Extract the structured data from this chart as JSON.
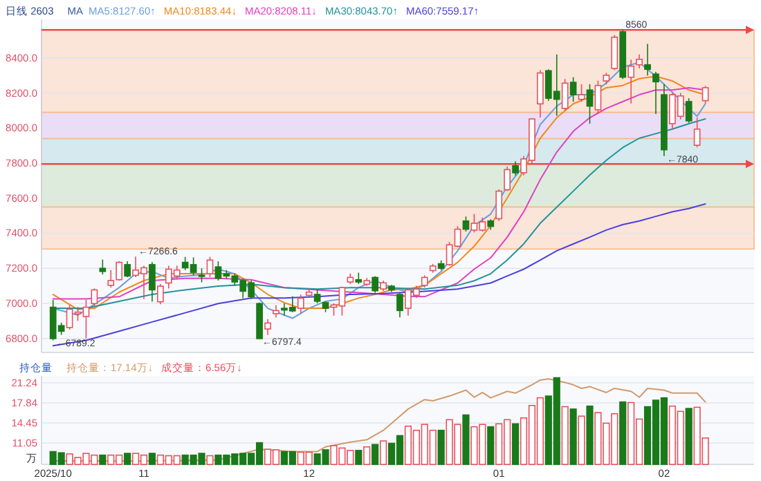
{
  "chart_data": [
    {
      "type": "candlestick",
      "title": "日线 2603",
      "legend_title": "MA",
      "legend": "top",
      "grid": "y",
      "tick_labels": "y",
      "categories": [
        null,
        null,
        null,
        null,
        null,
        null,
        null,
        null,
        null,
        null,
        null,
        null,
        null,
        null,
        null,
        null,
        null,
        null,
        null,
        null,
        null,
        null,
        null,
        null,
        null,
        null,
        null,
        null,
        null,
        null,
        null,
        null,
        null,
        null,
        null,
        null,
        null,
        null,
        null,
        null,
        null,
        null,
        null,
        null,
        null,
        null,
        null,
        null,
        null,
        null,
        null,
        null,
        null,
        null,
        null,
        null,
        null,
        null,
        null,
        null,
        null,
        null,
        null,
        null,
        null,
        null,
        null,
        null,
        null,
        null,
        null,
        null,
        null,
        null,
        null,
        null,
        null,
        null,
        null,
        null
      ],
      "ohlc": [
        [
          6978,
          7020,
          6789.2,
          6799
        ],
        [
          6873,
          6890,
          6820,
          6841
        ],
        [
          6862,
          6990,
          6850,
          6967
        ],
        [
          6940,
          6980,
          6900,
          6950
        ],
        [
          6925,
          7020,
          6800,
          6978
        ],
        [
          6999,
          7085,
          6985,
          7077
        ],
        [
          7200,
          7250,
          7165,
          7182
        ],
        [
          7103,
          7190,
          7090,
          7130
        ],
        [
          7135,
          7240,
          7130,
          7234
        ],
        [
          7221,
          7240,
          7150,
          7156
        ],
        [
          7160,
          7266.6,
          7150,
          7190
        ],
        [
          7169,
          7215,
          7025,
          7203
        ],
        [
          7221,
          7235,
          7010,
          7077
        ],
        [
          7009,
          7110,
          6995,
          7098
        ],
        [
          7116,
          7215,
          7085,
          7195
        ],
        [
          7156,
          7215,
          7140,
          7190
        ],
        [
          7234,
          7265,
          7190,
          7203
        ],
        [
          7221,
          7262,
          7160,
          7177
        ],
        [
          7160,
          7200,
          7120,
          7155
        ],
        [
          7169,
          7265,
          7150,
          7247
        ],
        [
          7208,
          7240,
          7130,
          7143
        ],
        [
          7169,
          7190,
          7140,
          7156
        ],
        [
          7156,
          7170,
          7100,
          7122
        ],
        [
          7130,
          7140,
          7030,
          7069
        ],
        [
          7117,
          7130,
          7025,
          7038
        ],
        [
          6999,
          7005,
          6797.4,
          6799
        ],
        [
          6854,
          6910,
          6820,
          6888
        ],
        [
          6941,
          6990,
          6920,
          6959
        ],
        [
          6972,
          7000,
          6930,
          6962
        ],
        [
          6977,
          7040,
          6950,
          6957
        ],
        [
          6972,
          7050,
          6940,
          7030
        ],
        [
          7046,
          7085,
          7040,
          7064
        ],
        [
          7051,
          7080,
          7000,
          7012
        ],
        [
          7004,
          7010,
          6950,
          6972
        ],
        [
          6978,
          7000,
          6930,
          6991
        ],
        [
          6985,
          7095,
          6930,
          7090
        ],
        [
          7122,
          7170,
          7110,
          7148
        ],
        [
          7135,
          7175,
          7110,
          7122
        ],
        [
          7109,
          7145,
          7100,
          7130
        ],
        [
          7148,
          7155,
          7060,
          7072
        ],
        [
          7082,
          7130,
          7070,
          7117
        ],
        [
          7098,
          7105,
          7065,
          7077
        ],
        [
          7051,
          7060,
          6920,
          6959
        ],
        [
          6972,
          7090,
          6930,
          7077
        ],
        [
          7046,
          7100,
          7030,
          7082
        ],
        [
          7103,
          7160,
          7090,
          7148
        ],
        [
          7187,
          7225,
          7175,
          7213
        ],
        [
          7226,
          7245,
          7190,
          7200
        ],
        [
          7221,
          7350,
          7215,
          7334
        ],
        [
          7326,
          7440,
          7320,
          7423
        ],
        [
          7470,
          7495,
          7410,
          7423
        ],
        [
          7418,
          7510,
          7405,
          7457
        ],
        [
          7418,
          7490,
          7410,
          7465
        ],
        [
          7470,
          7480,
          7420,
          7439
        ],
        [
          7483,
          7650,
          7470,
          7640
        ],
        [
          7648,
          7780,
          7640,
          7763
        ],
        [
          7785,
          7810,
          7730,
          7745
        ],
        [
          7745,
          7840,
          7730,
          7824
        ],
        [
          7816,
          8055,
          7800,
          8052
        ],
        [
          8138,
          8330,
          8060,
          8314
        ],
        [
          8327,
          8335,
          8155,
          8170
        ],
        [
          8209,
          8420,
          8070,
          8164
        ],
        [
          8112,
          8280,
          8100,
          8256
        ],
        [
          8261,
          8290,
          8150,
          8190
        ],
        [
          8164,
          8250,
          8150,
          8190
        ],
        [
          8217,
          8250,
          8025,
          8125
        ],
        [
          8104,
          8270,
          8080,
          8243
        ],
        [
          8269,
          8315,
          8250,
          8301
        ],
        [
          8340,
          8530,
          8330,
          8518
        ],
        [
          8549,
          8560,
          8280,
          8290
        ],
        [
          8290,
          8390,
          8140,
          8353
        ],
        [
          8361,
          8420,
          8340,
          8392
        ],
        [
          8361,
          8480,
          8300,
          8335
        ],
        [
          8308,
          8320,
          8080,
          8264
        ],
        [
          8190,
          8250,
          7840,
          7876
        ],
        [
          8025,
          8200,
          7990,
          8190
        ],
        [
          8067,
          8200,
          8050,
          8183
        ],
        [
          8151,
          8170,
          8030,
          8041
        ],
        [
          7902,
          8060,
          7890,
          7994
        ],
        [
          8156,
          8240,
          8140,
          8230
        ]
      ],
      "colors": [
        "#1a7a1a",
        "#1a7a1a",
        "#e8505b",
        "#e8505b",
        "#e8505b",
        "#e8505b",
        "#1a7a1a",
        "#e8505b",
        "#e8505b",
        "#1a7a1a",
        "#e8505b",
        "#e8505b",
        "#1a7a1a",
        "#e8505b",
        "#e8505b",
        "#e8505b",
        "#1a7a1a",
        "#1a7a1a",
        "#1a7a1a",
        "#e8505b",
        "#1a7a1a",
        "#1a7a1a",
        "#1a7a1a",
        "#1a7a1a",
        "#1a7a1a",
        "#1a7a1a",
        "#e8505b",
        "#e8505b",
        "#1a7a1a",
        "#1a7a1a",
        "#e8505b",
        "#e8505b",
        "#1a7a1a",
        "#1a7a1a",
        "#e8505b",
        "#e8505b",
        "#e8505b",
        "#1a7a1a",
        "#e8505b",
        "#1a7a1a",
        "#e8505b",
        "#1a7a1a",
        "#1a7a1a",
        "#e8505b",
        "#e8505b",
        "#e8505b",
        "#e8505b",
        "#1a7a1a",
        "#e8505b",
        "#e8505b",
        "#1a7a1a",
        "#e8505b",
        "#e8505b",
        "#1a7a1a",
        "#e8505b",
        "#e8505b",
        "#1a7a1a",
        "#e8505b",
        "#e8505b",
        "#e8505b",
        "#1a7a1a",
        "#1a7a1a",
        "#e8505b",
        "#1a7a1a",
        "#e8505b",
        "#1a7a1a",
        "#e8505b",
        "#e8505b",
        "#e8505b",
        "#1a7a1a",
        "#e8505b",
        "#e8505b",
        "#1a7a1a",
        "#1a7a1a",
        "#1a7a1a",
        "#e8505b",
        "#e8505b",
        "#1a7a1a",
        "#e8505b",
        "#e8505b"
      ],
      "series": [
        {
          "name": "MA5:8127.60↑",
          "type": "line",
          "color": "#6a9ee0",
          "values": [
            6972,
            null,
            null,
            6933,
            null,
            null,
            7025,
            null,
            7090,
            null,
            7169,
            null,
            7182,
            null,
            7143,
            null,
            7156,
            null,
            7161,
            null,
            7195,
            null,
            7169,
            null,
            7077,
            null,
            6972,
            null,
            6933,
            6915,
            null,
            6972,
            null,
            7012,
            null,
            7025,
            null,
            7090,
            null,
            7130,
            null,
            7090,
            null,
            7064,
            null,
            7103,
            null,
            7182,
            null,
            7300,
            null,
            7444,
            null,
            7509,
            null,
            7666,
            null,
            7784,
            null,
            8020,
            null,
            8125,
            null,
            8190,
            null,
            8190,
            null,
            8256,
            null,
            8348,
            null,
            8374,
            null,
            8295,
            null,
            8204,
            null,
            8112,
            8067,
            8138
          ]
        },
        {
          "name": "MA10:8183.44↓",
          "type": "line",
          "color": "#f0891e",
          "values": [
            7051,
            null,
            null,
            6965,
            null,
            6972,
            null,
            null,
            7064,
            null,
            null,
            7130,
            null,
            null,
            7169,
            null,
            null,
            7169,
            null,
            null,
            7169,
            null,
            7169,
            null,
            7117,
            null,
            7051,
            null,
            7004,
            null,
            6972,
            null,
            null,
            6972,
            null,
            6999,
            null,
            7030,
            null,
            7051,
            null,
            7077,
            null,
            7082,
            null,
            7103,
            null,
            7169,
            null,
            7234,
            null,
            7326,
            null,
            7444,
            null,
            7601,
            null,
            7758,
            null,
            7942,
            null,
            8059,
            null,
            8138,
            null,
            8177,
            null,
            8230,
            null,
            8243,
            null,
            8282,
            null,
            8295,
            null,
            8269,
            null,
            8217,
            null,
            8190
          ]
        },
        {
          "name": "MA20:8208.11↓",
          "type": "line",
          "color": "#e040c0",
          "values": [
            7025,
            null,
            null,
            null,
            7025,
            null,
            null,
            null,
            7038,
            null,
            null,
            null,
            7130,
            null,
            null,
            null,
            7143,
            null,
            null,
            null,
            7143,
            null,
            null,
            null,
            7135,
            null,
            null,
            null,
            7090,
            null,
            null,
            null,
            7077,
            null,
            null,
            null,
            7064,
            null,
            null,
            null,
            7051,
            null,
            null,
            7040,
            null,
            7038,
            null,
            7077,
            null,
            7116,
            null,
            7195,
            null,
            7260,
            null,
            7378,
            null,
            7522,
            null,
            7706,
            null,
            7863,
            null,
            7981,
            null,
            8059,
            null,
            8112,
            null,
            8151,
            null,
            8190,
            null,
            8217,
            null,
            8217,
            null,
            8230,
            null,
            8217
          ]
        },
        {
          "name": "MA30:8043.70↑",
          "type": "line",
          "color": "#22939a",
          "values": [
            6972,
            null,
            null,
            null,
            6972,
            null,
            null,
            null,
            7012,
            null,
            null,
            null,
            7051,
            null,
            null,
            null,
            7077,
            null,
            null,
            null,
            7098,
            null,
            null,
            null,
            7109,
            null,
            null,
            null,
            7090,
            null,
            null,
            null,
            7082,
            null,
            null,
            null,
            7090,
            null,
            null,
            null,
            7090,
            null,
            null,
            null,
            null,
            7082,
            null,
            null,
            null,
            7103,
            null,
            7129,
            null,
            7169,
            null,
            7247,
            null,
            7339,
            null,
            7457,
            null,
            7549,
            null,
            7640,
            null,
            7732,
            null,
            7816,
            null,
            7889,
            null,
            7942,
            null,
            7968,
            null,
            7994,
            null,
            8025,
            null,
            8052
          ]
        },
        {
          "name": "MA60:7559.17↑",
          "type": "line",
          "color": "#4a3fe0",
          "values": [
            6758,
            null,
            null,
            null,
            6789,
            null,
            null,
            null,
            6841,
            null,
            null,
            null,
            6894,
            null,
            null,
            null,
            6946,
            null,
            null,
            null,
            6999,
            null,
            null,
            null,
            7030,
            null,
            null,
            null,
            7030,
            null,
            null,
            null,
            7038,
            null,
            null,
            null,
            7051,
            null,
            null,
            null,
            7056,
            null,
            null,
            null,
            null,
            7069,
            null,
            null,
            null,
            7082,
            null,
            null,
            null,
            7116,
            null,
            7156,
            null,
            7195,
            null,
            7247,
            null,
            7300,
            null,
            7339,
            null,
            7378,
            null,
            7418,
            null,
            7449,
            null,
            7470,
            null,
            7496,
            null,
            7522,
            null,
            7541,
            null,
            7567
          ]
        }
      ],
      "ylim": [
        6720,
        8620
      ],
      "yticks": [
        {
          "value": 6800,
          "label": "6800.0"
        },
        {
          "value": 7000,
          "label": "7000.0"
        },
        {
          "value": 7200,
          "label": "7200.0"
        },
        {
          "value": 7400,
          "label": "7400.0"
        },
        {
          "value": 7600,
          "label": "7600.0"
        },
        {
          "value": 7800,
          "label": "7800.0"
        },
        {
          "value": 8000,
          "label": "8000.0"
        },
        {
          "value": 8200,
          "label": "8200.0"
        },
        {
          "value": 8400,
          "label": "8400.0"
        }
      ],
      "bands": [
        {
          "axis": "y",
          "from": 7310,
          "to": 7550,
          "color": "#fbe4d8"
        },
        {
          "axis": "y",
          "from": 7550,
          "to": 7795,
          "color": "#dcebdc"
        },
        {
          "axis": "y",
          "from": 7795,
          "to": 7940,
          "color": "#d5e9ee"
        },
        {
          "axis": "y",
          "from": 7940,
          "to": 8090,
          "color": "#ebdcf8"
        },
        {
          "axis": "y",
          "from": 8090,
          "to": 8560,
          "color": "#fbe4d8"
        }
      ],
      "ref_lines": [
        {
          "axis": "y",
          "value": 8560,
          "color": "#f04848"
        },
        {
          "axis": "y",
          "value": 7795,
          "color": "#f04848"
        }
      ],
      "annotations": [
        {
          "text": "8560",
          "y": 8560
        },
        "←6789.2",
        "←7266.6",
        "←6797.4",
        "←7840"
      ]
    },
    {
      "type": "bar",
      "title": "持仓量",
      "legend": "top",
      "grid": "y",
      "categories": [
        "2025/10",
        null,
        null,
        null,
        null,
        null,
        null,
        null,
        null,
        null,
        null,
        "11",
        null,
        null,
        null,
        null,
        null,
        null,
        null,
        null,
        null,
        null,
        null,
        null,
        null,
        null,
        null,
        null,
        null,
        null,
        null,
        "12",
        null,
        null,
        null,
        null,
        null,
        null,
        null,
        null,
        null,
        null,
        null,
        null,
        null,
        null,
        null,
        null,
        null,
        null,
        null,
        null,
        null,
        null,
        "01",
        null,
        null,
        null,
        null,
        null,
        null,
        null,
        null,
        null,
        null,
        null,
        null,
        null,
        null,
        null,
        null,
        null,
        null,
        null,
        "02",
        null,
        null,
        null,
        null,
        null
      ],
      "series": [
        {
          "name": "持仓量：17.14万↓",
          "type": "line",
          "color": "#d39a6a",
          "values": [
            8.0,
            null,
            null,
            null,
            null,
            null,
            null,
            null,
            null,
            null,
            null,
            8.0,
            null,
            null,
            null,
            null,
            null,
            null,
            null,
            null,
            8.2,
            null,
            null,
            null,
            null,
            10.0,
            null,
            null,
            null,
            9.6,
            null,
            null,
            9.6,
            10.4,
            null,
            null,
            11.2,
            null,
            11.6,
            null,
            13.2,
            null,
            15.6,
            16.8,
            null,
            18.4,
            18.2,
            null,
            19.0,
            null,
            20.0,
            18.8,
            19.6,
            18.7,
            null,
            19.8,
            19.5,
            null,
            20.9,
            21.7,
            21.9,
            null,
            21.3,
            20.9,
            20.3,
            20.6,
            null,
            19.6,
            20.3,
            null,
            19.8,
            18.8,
            20.3,
            null,
            20.0,
            19.5,
            null,
            null,
            19.5,
            18.0
          ]
        },
        {
          "name": "成交量：6.56万↓",
          "type": "bar",
          "colors": [
            "#1a7a1a",
            "#1a7a1a",
            "#e8505b",
            "#e8505b",
            "#e8505b",
            "#e8505b",
            "#1a7a1a",
            "#e8505b",
            "#e8505b",
            "#1a7a1a",
            "#e8505b",
            "#e8505b",
            "#1a7a1a",
            "#e8505b",
            "#e8505b",
            "#e8505b",
            "#1a7a1a",
            "#1a7a1a",
            "#1a7a1a",
            "#e8505b",
            "#1a7a1a",
            "#1a7a1a",
            "#1a7a1a",
            "#1a7a1a",
            "#1a7a1a",
            "#1a7a1a",
            "#e8505b",
            "#e8505b",
            "#1a7a1a",
            "#1a7a1a",
            "#e8505b",
            "#e8505b",
            "#1a7a1a",
            "#1a7a1a",
            "#e8505b",
            "#e8505b",
            "#e8505b",
            "#1a7a1a",
            "#e8505b",
            "#1a7a1a",
            "#e8505b",
            "#1a7a1a",
            "#1a7a1a",
            "#e8505b",
            "#e8505b",
            "#e8505b",
            "#e8505b",
            "#1a7a1a",
            "#e8505b",
            "#e8505b",
            "#1a7a1a",
            "#e8505b",
            "#e8505b",
            "#1a7a1a",
            "#e8505b",
            "#e8505b",
            "#1a7a1a",
            "#e8505b",
            "#e8505b",
            "#e8505b",
            "#1a7a1a",
            "#1a7a1a",
            "#e8505b",
            "#1a7a1a",
            "#e8505b",
            "#1a7a1a",
            "#e8505b",
            "#e8505b",
            "#e8505b",
            "#1a7a1a",
            "#e8505b",
            "#e8505b",
            "#1a7a1a",
            "#1a7a1a",
            "#1a7a1a",
            "#e8505b",
            "#e8505b",
            "#1a7a1a",
            "#e8505b",
            "#e8505b"
          ],
          "values": [
            9.6,
            9.4,
            9.2,
            8.6,
            9.3,
            9.0,
            9.0,
            9.0,
            9.0,
            9.3,
            9.3,
            9.0,
            9.3,
            9.0,
            8.9,
            8.9,
            9.0,
            9.0,
            9.3,
            8.9,
            9.0,
            9.0,
            9.2,
            9.3,
            9.3,
            11.1,
            10.0,
            9.9,
            9.6,
            9.6,
            9.5,
            9.5,
            9.2,
            9.9,
            10.6,
            10.2,
            9.8,
            9.8,
            10.4,
            10.8,
            11.4,
            11.0,
            12.3,
            13.9,
            13.2,
            14.2,
            13.2,
            13.2,
            15.0,
            14.2,
            15.8,
            13.8,
            14.2,
            13.8,
            14.3,
            15.0,
            14.3,
            15.3,
            17.4,
            18.7,
            19.0,
            22.1,
            17.2,
            16.8,
            15.6,
            17.3,
            16.2,
            14.4,
            16.0,
            18.0,
            17.9,
            15.1,
            17.2,
            18.3,
            18.7,
            17.3,
            16.4,
            16.9,
            17.1,
            11.9
          ]
        }
      ],
      "ylim": [
        7.43,
        22.4
      ],
      "yticks": [
        11.05,
        14.45,
        17.84,
        21.24
      ],
      "annotations": [
        "万"
      ]
    }
  ]
}
